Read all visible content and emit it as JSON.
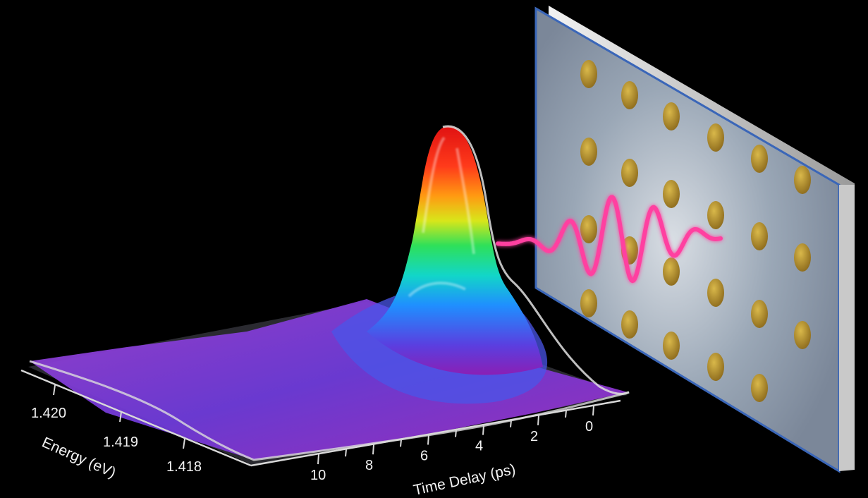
{
  "chart_data": {
    "type": "surface",
    "x_axis": {
      "title": "Time Delay (ps)",
      "ticks": [
        "0",
        "2",
        "4",
        "6",
        "8",
        "10"
      ]
    },
    "y_axis": {
      "title": "Energy (eV)",
      "ticks": [
        "1.418",
        "1.419",
        "1.420"
      ]
    },
    "colors": {
      "background": "#000000",
      "colormap": [
        "#8a1fb5",
        "#5a3fe0",
        "#1f8fff",
        "#12d6c8",
        "#2ee05a",
        "#d8e61a",
        "#ff9a12",
        "#ff3a1a",
        "#e01212"
      ],
      "terahertz_pulse": "#ff3fa0",
      "plate": "#8d9db0",
      "plate_dots": "#b8962f"
    }
  }
}
